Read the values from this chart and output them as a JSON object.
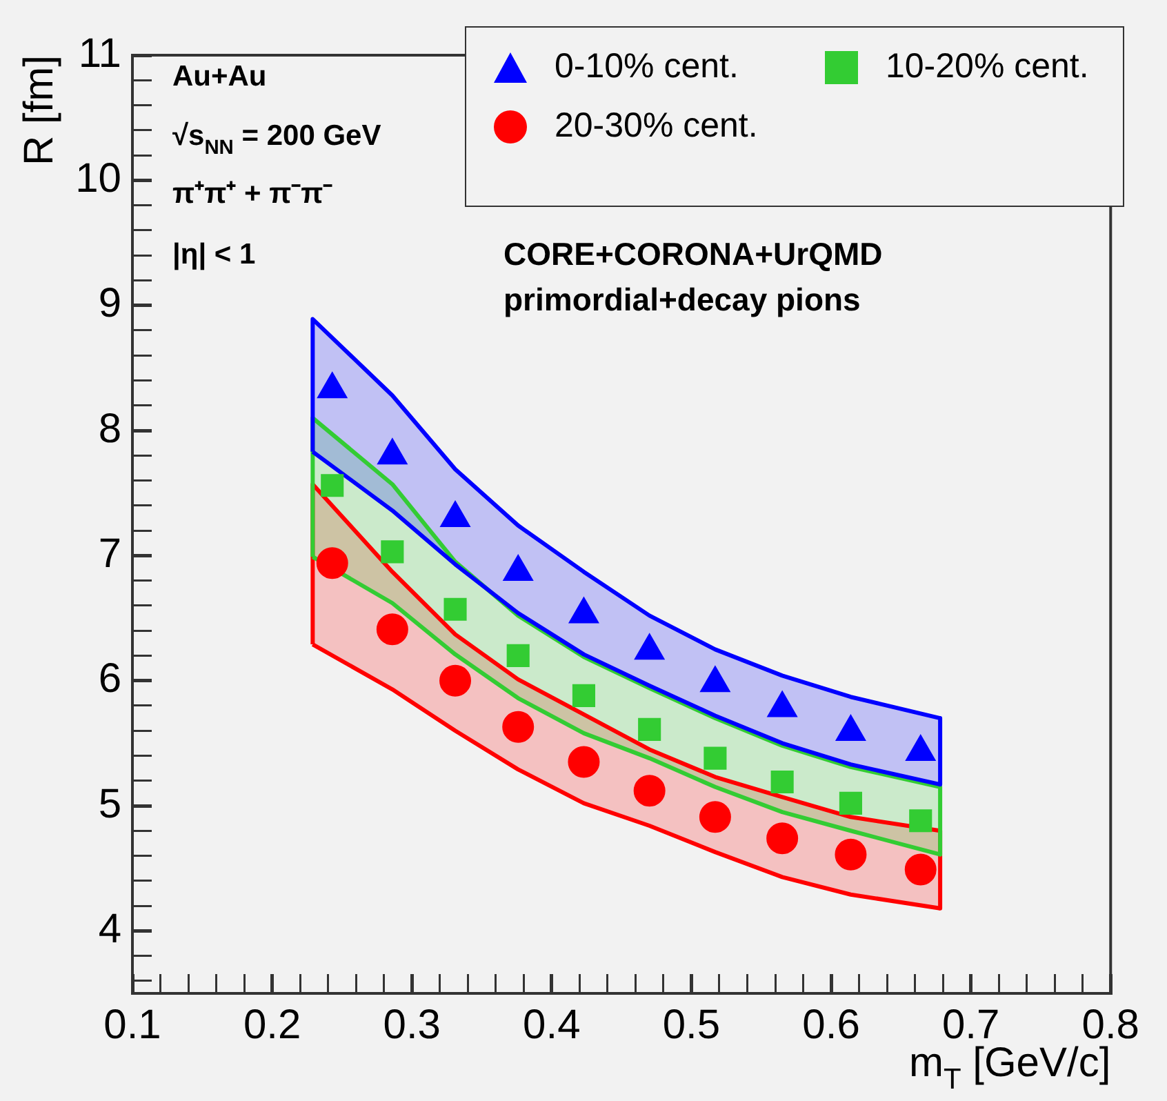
{
  "chart_data": {
    "type": "scatter",
    "xlabel": "m$_{T}$ [GeV/c]",
    "ylabel": "R [fm]",
    "annotations": [
      "Au+Au",
      "√s$_{NN}$ = 200 GeV",
      "π⁺π⁺ + π⁻π⁻",
      "|η| < 1",
      "CORE+CORONA+UrQMD",
      "primordial+decay pions"
    ],
    "x": [
      0.243,
      0.286,
      0.331,
      0.376,
      0.423,
      0.47,
      0.517,
      0.565,
      0.614,
      0.664
    ],
    "series": [
      {
        "name": "0-10% cent.",
        "type": "scatter",
        "marker": "triangle",
        "color": "#0000ff",
        "values": [
          8.33,
          7.8,
          7.3,
          6.87,
          6.53,
          6.24,
          5.98,
          5.78,
          5.59,
          5.43
        ]
      },
      {
        "name": "10-20% cent.",
        "type": "scatter",
        "marker": "square",
        "color": "#33cc33",
        "values": [
          7.56,
          7.03,
          6.57,
          6.2,
          5.88,
          5.61,
          5.38,
          5.19,
          5.02,
          4.88
        ]
      },
      {
        "name": "20-30% cent.",
        "type": "scatter",
        "marker": "circle",
        "color": "#ff0000",
        "values": [
          6.94,
          6.41,
          6.0,
          5.63,
          5.35,
          5.12,
          4.91,
          4.74,
          4.61,
          4.49
        ]
      },
      {
        "type": "line",
        "color": "#0000ff",
        "x": [
          0.229,
          0.286,
          0.331,
          0.376,
          0.423,
          0.47,
          0.517,
          0.565,
          0.614,
          0.678
        ],
        "values": [
          null,
          null,
          null,
          null,
          null,
          null,
          null,
          null,
          null,
          null
        ],
        "lower": [
          7.83,
          7.36,
          6.93,
          6.54,
          6.21,
          5.96,
          5.72,
          5.5,
          5.33,
          5.17
        ],
        "upper": [
          8.89,
          8.28,
          7.69,
          7.24,
          6.87,
          6.52,
          6.25,
          6.04,
          5.87,
          5.7
        ]
      },
      {
        "type": "line",
        "color": "#0000ff",
        "x": [
          0.229,
          0.286,
          0.331,
          0.376,
          0.423,
          0.47,
          0.517,
          0.565,
          0.614,
          0.678
        ],
        "values": [
          7.83,
          7.36,
          6.93,
          6.54,
          6.21,
          5.96,
          5.72,
          5.5,
          5.33,
          5.17
        ]
      },
      {
        "type": "line",
        "color": "#0000ff",
        "x": [
          0.229,
          0.229,
          0.286,
          0.331,
          0.376,
          0.423,
          0.47,
          0.517,
          0.565,
          0.614,
          0.678,
          0.678
        ],
        "values": [
          7.83,
          8.89,
          8.28,
          7.69,
          7.24,
          6.87,
          6.52,
          6.25,
          6.04,
          5.87,
          5.7,
          5.17
        ]
      },
      {
        "type": "line",
        "color": "#33cc33",
        "x": [
          0.229,
          0.286,
          0.331,
          0.376,
          0.423,
          0.47,
          0.517,
          0.565,
          0.614,
          0.678
        ],
        "values": [
          null,
          null,
          null,
          null,
          null,
          null,
          null,
          null,
          null,
          null
        ],
        "lower": [
          6.99,
          6.62,
          6.21,
          5.86,
          5.58,
          5.38,
          5.15,
          4.95,
          4.8,
          4.61
        ],
        "upper": [
          8.1,
          7.57,
          6.95,
          6.52,
          6.19,
          5.94,
          5.7,
          5.48,
          5.31,
          5.15
        ]
      },
      {
        "type": "line",
        "color": "#33cc33",
        "x": [
          0.229,
          0.286,
          0.331,
          0.376,
          0.423,
          0.47,
          0.517,
          0.565,
          0.614,
          0.678
        ],
        "values": [
          6.99,
          6.62,
          6.21,
          5.86,
          5.58,
          5.38,
          5.15,
          4.95,
          4.8,
          4.61
        ]
      },
      {
        "type": "line",
        "color": "#33cc33",
        "x": [
          0.229,
          0.229,
          0.286,
          0.331,
          0.376,
          0.423,
          0.47,
          0.517,
          0.565,
          0.614,
          0.678,
          0.678
        ],
        "values": [
          6.99,
          8.1,
          7.57,
          6.95,
          6.52,
          6.19,
          5.94,
          5.7,
          5.48,
          5.31,
          5.15,
          4.61
        ]
      },
      {
        "type": "line",
        "color": "#ff0000",
        "x": [
          0.229,
          0.286,
          0.331,
          0.376,
          0.423,
          0.47,
          0.517,
          0.565,
          0.614,
          0.678
        ],
        "values": [
          null,
          null,
          null,
          null,
          null,
          null,
          null,
          null,
          null,
          null
        ],
        "lower": [
          6.29,
          5.93,
          5.6,
          5.29,
          5.02,
          4.84,
          4.63,
          4.43,
          4.29,
          4.18
        ],
        "upper": [
          7.57,
          6.87,
          6.37,
          6.01,
          5.73,
          5.45,
          5.23,
          5.07,
          4.91,
          4.8
        ]
      },
      {
        "type": "line",
        "color": "#ff0000",
        "x": [
          0.229,
          0.286,
          0.331,
          0.376,
          0.423,
          0.47,
          0.517,
          0.565,
          0.614,
          0.678
        ],
        "values": [
          6.29,
          5.93,
          5.6,
          5.29,
          5.02,
          4.84,
          4.63,
          4.43,
          4.29,
          4.18
        ]
      },
      {
        "type": "line",
        "color": "#ff0000",
        "x": [
          0.229,
          0.229,
          0.286,
          0.331,
          0.376,
          0.423,
          0.47,
          0.517,
          0.565,
          0.614,
          0.678,
          0.678
        ],
        "values": [
          6.29,
          7.57,
          6.87,
          6.37,
          6.01,
          5.73,
          5.45,
          5.23,
          5.07,
          4.91,
          4.8,
          4.18
        ]
      }
    ],
    "xlim": [
      0.1,
      0.8
    ],
    "xticks": [
      0.1,
      {
        "value": 0.12,
        "label": null
      },
      {
        "value": 0.14,
        "label": null
      },
      {
        "value": 0.16,
        "label": null
      },
      {
        "value": 0.18,
        "label": null
      },
      0.2,
      {
        "value": 0.22,
        "label": null
      },
      {
        "value": 0.24,
        "label": null
      },
      {
        "value": 0.26,
        "label": null
      },
      {
        "value": 0.28,
        "label": null
      },
      0.3,
      {
        "value": 0.32,
        "label": null
      },
      {
        "value": 0.34,
        "label": null
      },
      {
        "value": 0.36,
        "label": null
      },
      {
        "value": 0.38,
        "label": null
      },
      0.4,
      {
        "value": 0.42,
        "label": null
      },
      {
        "value": 0.44,
        "label": null
      },
      {
        "value": 0.46,
        "label": null
      },
      {
        "value": 0.48,
        "label": null
      },
      0.5,
      {
        "value": 0.52,
        "label": null
      },
      {
        "value": 0.54,
        "label": null
      },
      {
        "value": 0.56,
        "label": null
      },
      {
        "value": 0.58,
        "label": null
      },
      0.6,
      {
        "value": 0.62,
        "label": null
      },
      {
        "value": 0.64,
        "label": null
      },
      {
        "value": 0.66,
        "label": null
      },
      {
        "value": 0.68,
        "label": null
      },
      0.7,
      {
        "value": 0.72,
        "label": null
      },
      {
        "value": 0.74,
        "label": null
      },
      {
        "value": 0.76,
        "label": null
      },
      {
        "value": 0.78,
        "label": null
      },
      0.8
    ],
    "ylim": [
      3.5,
      11
    ],
    "yticks": [
      {
        "value": 3.6,
        "label": null
      },
      {
        "value": 3.8,
        "label": null
      },
      4,
      {
        "value": 4.2,
        "label": null
      },
      {
        "value": 4.4,
        "label": null
      },
      {
        "value": 4.6,
        "label": null
      },
      {
        "value": 4.8,
        "label": null
      },
      5,
      {
        "value": 5.2,
        "label": null
      },
      {
        "value": 5.4,
        "label": null
      },
      {
        "value": 5.6,
        "label": null
      },
      {
        "value": 5.8,
        "label": null
      },
      6,
      {
        "value": 6.2,
        "label": null
      },
      {
        "value": 6.4,
        "label": null
      },
      {
        "value": 6.6,
        "label": null
      },
      {
        "value": 6.8,
        "label": null
      },
      7,
      {
        "value": 7.2,
        "label": null
      },
      {
        "value": 7.4,
        "label": null
      },
      {
        "value": 7.6,
        "label": null
      },
      {
        "value": 7.8,
        "label": null
      },
      8,
      {
        "value": 8.2,
        "label": null
      },
      {
        "value": 8.4,
        "label": null
      },
      {
        "value": 8.6,
        "label": null
      },
      {
        "value": 8.8,
        "label": null
      },
      9,
      {
        "value": 9.2,
        "label": null
      },
      {
        "value": 9.4,
        "label": null
      },
      {
        "value": 9.6,
        "label": null
      },
      {
        "value": 9.8,
        "label": null
      },
      10,
      {
        "value": 10.2,
        "label": null
      },
      {
        "value": 10.4,
        "label": null
      },
      {
        "value": 10.6,
        "label": null
      },
      {
        "value": 10.8,
        "label": null
      },
      11
    ],
    "grid": false,
    "legend": "top right"
  }
}
